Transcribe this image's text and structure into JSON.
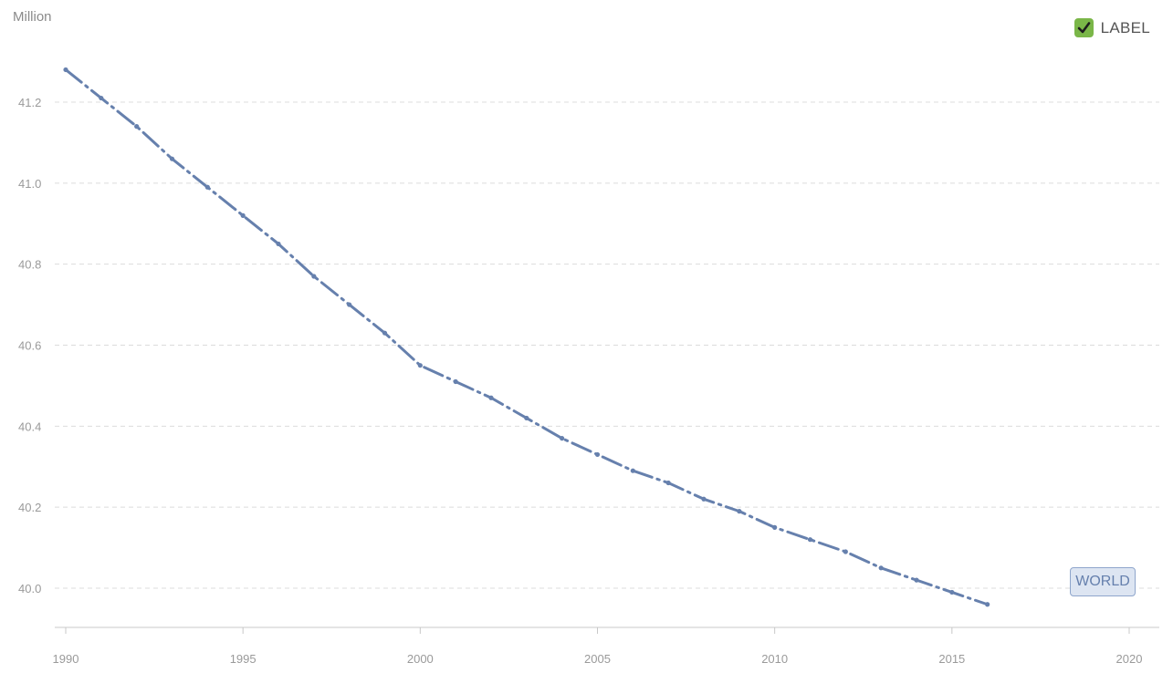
{
  "colors": {
    "series": "#6680ad",
    "grid": "#dcdcdc",
    "axis": "#c8c8c8",
    "tick_text": "#9a9a9a",
    "legend_check_bg": "#7ab648",
    "tag_bg": "#dde5f2",
    "tag_text": "#6680ad"
  },
  "legend": {
    "label": "LABEL",
    "checked": true,
    "icon": "check-icon"
  },
  "series_tag": {
    "label": "WORLD"
  },
  "chart_data": {
    "type": "line",
    "title": "",
    "ylabel": "Million",
    "xlabel": "",
    "xlim": [
      1990,
      2020
    ],
    "ylim": [
      39.9,
      41.35
    ],
    "x_ticks": [
      1990,
      1995,
      2000,
      2005,
      2010,
      2015,
      2020
    ],
    "y_ticks": [
      40.0,
      40.2,
      40.4,
      40.6,
      40.8,
      41.0,
      41.2
    ],
    "y_tick_labels": [
      "40.0",
      "40.2",
      "40.4",
      "40.6",
      "40.8",
      "41.0",
      "41.2"
    ],
    "grid": true,
    "legend_position": "top-right",
    "series": [
      {
        "name": "WORLD",
        "line_style": "dash-dot",
        "x": [
          1990,
          1991,
          1992,
          1993,
          1994,
          1995,
          1996,
          1997,
          1998,
          1999,
          2000,
          2001,
          2002,
          2003,
          2004,
          2005,
          2006,
          2007,
          2008,
          2009,
          2010,
          2011,
          2012,
          2013,
          2014,
          2015,
          2016
        ],
        "values": [
          41.28,
          41.21,
          41.14,
          41.06,
          40.99,
          40.92,
          40.85,
          40.77,
          40.7,
          40.63,
          40.55,
          40.51,
          40.47,
          40.42,
          40.37,
          40.33,
          40.29,
          40.26,
          40.22,
          40.19,
          40.15,
          40.12,
          40.09,
          40.05,
          40.02,
          39.99,
          39.96
        ]
      }
    ]
  }
}
